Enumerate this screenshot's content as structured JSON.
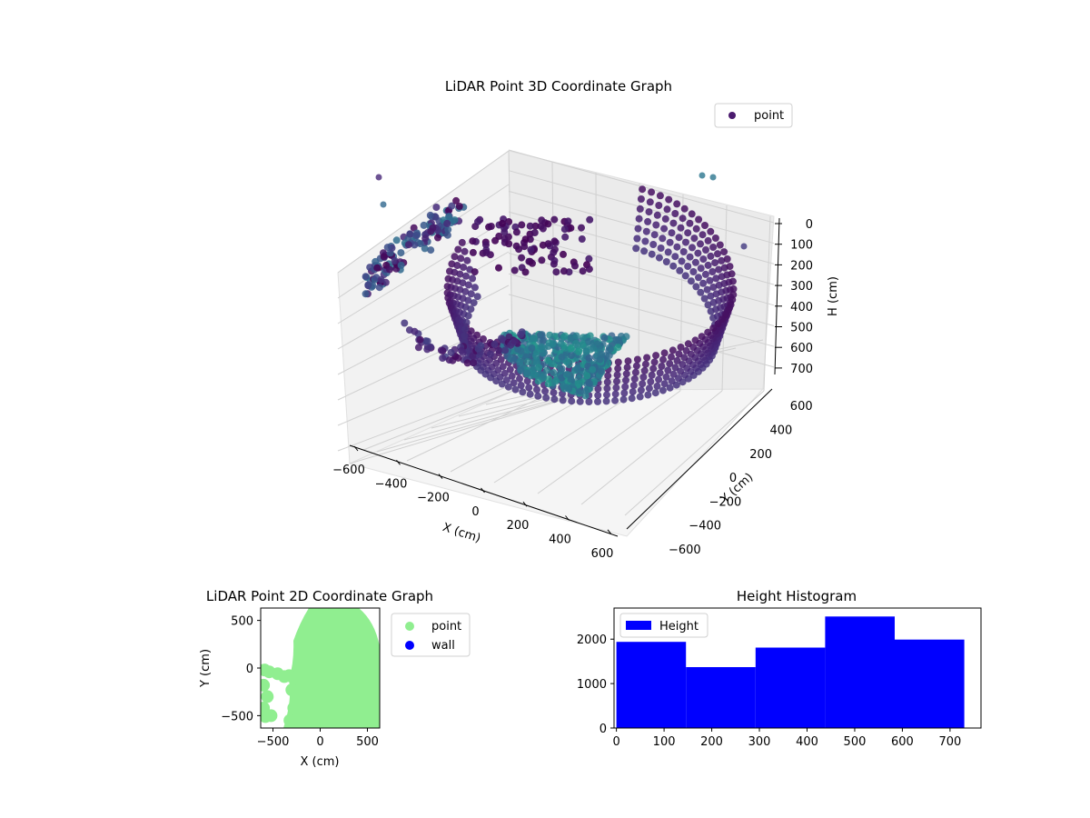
{
  "chart_data": [
    {
      "type": "scatter",
      "title": "LiDAR Point 3D Coordinate Graph",
      "xlabel": "X (cm)",
      "ylabel": "Y (cm)",
      "zlabel": "H (cm)",
      "xlim": [
        -650,
        650
      ],
      "ylim": [
        -650,
        650
      ],
      "zlim": [
        780,
        0
      ],
      "xticks": [
        "−600",
        "−400",
        "−200",
        "0",
        "200",
        "400",
        "600"
      ],
      "yticks": [
        "−600",
        "−400",
        "−200",
        "0",
        "200",
        "400",
        "600"
      ],
      "zticks": [
        "0",
        "100",
        "200",
        "300",
        "400",
        "500",
        "600",
        "700"
      ],
      "legend": {
        "labels": [
          "point"
        ],
        "placement": "top-right"
      },
      "colormap": "viridis",
      "legend_color": "#4b1a6e",
      "grid": true
    },
    {
      "type": "scatter",
      "title": "LiDAR Point 2D Coordinate Graph",
      "xlabel": "X (cm)",
      "ylabel": "Y (cm)",
      "xlim": [
        -630,
        630
      ],
      "ylim": [
        -630,
        630
      ],
      "xticks": [
        "−500",
        "0",
        "500"
      ],
      "yticks": [
        "500",
        "0",
        "−500"
      ],
      "legend": {
        "labels": [
          "point",
          "wall"
        ],
        "placement": "outside-right"
      },
      "colors": {
        "point": "#90ee90",
        "wall": "#0000ff"
      }
    },
    {
      "type": "bar",
      "title": "Height Histogram",
      "series": [
        {
          "name": "Height",
          "bins": [
            [
              0,
              146
            ],
            [
              146,
              292
            ],
            [
              292,
              438
            ],
            [
              438,
              584
            ],
            [
              584,
              730
            ]
          ],
          "values": [
            1940,
            1370,
            1810,
            2510,
            1990
          ]
        }
      ],
      "xlim": [
        -5,
        765
      ],
      "ylim": [
        0,
        2700
      ],
      "xticks": [
        "0",
        "100",
        "200",
        "300",
        "400",
        "500",
        "600",
        "700"
      ],
      "yticks": [
        "0",
        "1000",
        "2000"
      ],
      "legend": {
        "labels": [
          "Height"
        ],
        "placement": "top-left"
      },
      "color": "#0000ff"
    }
  ]
}
